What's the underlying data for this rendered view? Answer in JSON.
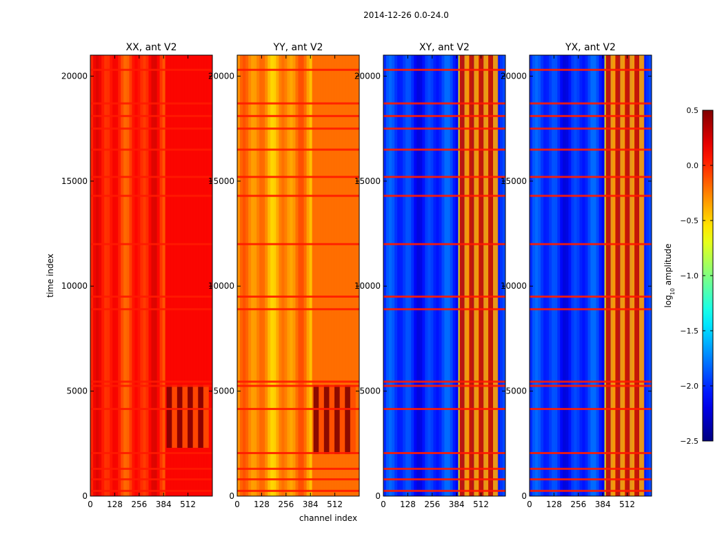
{
  "figure": {
    "suptitle": "2014-12-26 0.0-24.0",
    "xlabel": "channel index",
    "ylabel": "time index"
  },
  "chart_data": {
    "type": "heatmap",
    "x_range": [
      0,
      640
    ],
    "y_range": [
      0,
      21000
    ],
    "x_ticks": [
      0,
      128,
      256,
      384,
      512
    ],
    "x_tick_labels": [
      "0",
      "128",
      "256",
      "384",
      "512"
    ],
    "y_ticks": [
      0,
      5000,
      10000,
      15000,
      20000
    ],
    "y_tick_labels": [
      "0",
      "5000",
      "10000",
      "15000",
      "20000"
    ],
    "panels": [
      {
        "title": "XX, ant V2",
        "base_level": 0.02,
        "band_level": 0.5,
        "band_time": [
          2300,
          5300
        ],
        "bright_channels": [
          400,
          620
        ]
      },
      {
        "title": "YY, ant V2",
        "base_level": -0.3,
        "band_level": 0.5,
        "band_time": [
          2000,
          5300
        ],
        "bright_channels": [
          400,
          620
        ]
      },
      {
        "title": "XY, ant V2",
        "base_level": -2.0,
        "band_level": 0.3,
        "band_time": [
          0,
          21000
        ],
        "bright_channels": [
          400,
          600
        ]
      },
      {
        "title": "YX, ant V2",
        "base_level": -2.0,
        "band_level": 0.3,
        "band_time": [
          0,
          21000
        ],
        "bright_channels": [
          400,
          600
        ]
      }
    ],
    "horizontal_stripes_time": [
      250,
      800,
      1300,
      2050,
      4150,
      5250,
      5450,
      8900,
      9500,
      12000,
      14300,
      15200,
      16500,
      17500,
      18100,
      18700,
      20300
    ],
    "colorbar": {
      "label": "log",
      "label_sub": "10",
      "label_rest": " amplitude",
      "range": [
        -2.5,
        0.5
      ],
      "ticks": [
        -2.5,
        -2.0,
        -1.5,
        -1.0,
        -0.5,
        0.0,
        0.5
      ],
      "tick_labels": [
        "−2.5",
        "−2.0",
        "−1.5",
        "−1.0",
        "−0.5",
        "0.0",
        "0.5"
      ],
      "colormap": "jet"
    }
  }
}
